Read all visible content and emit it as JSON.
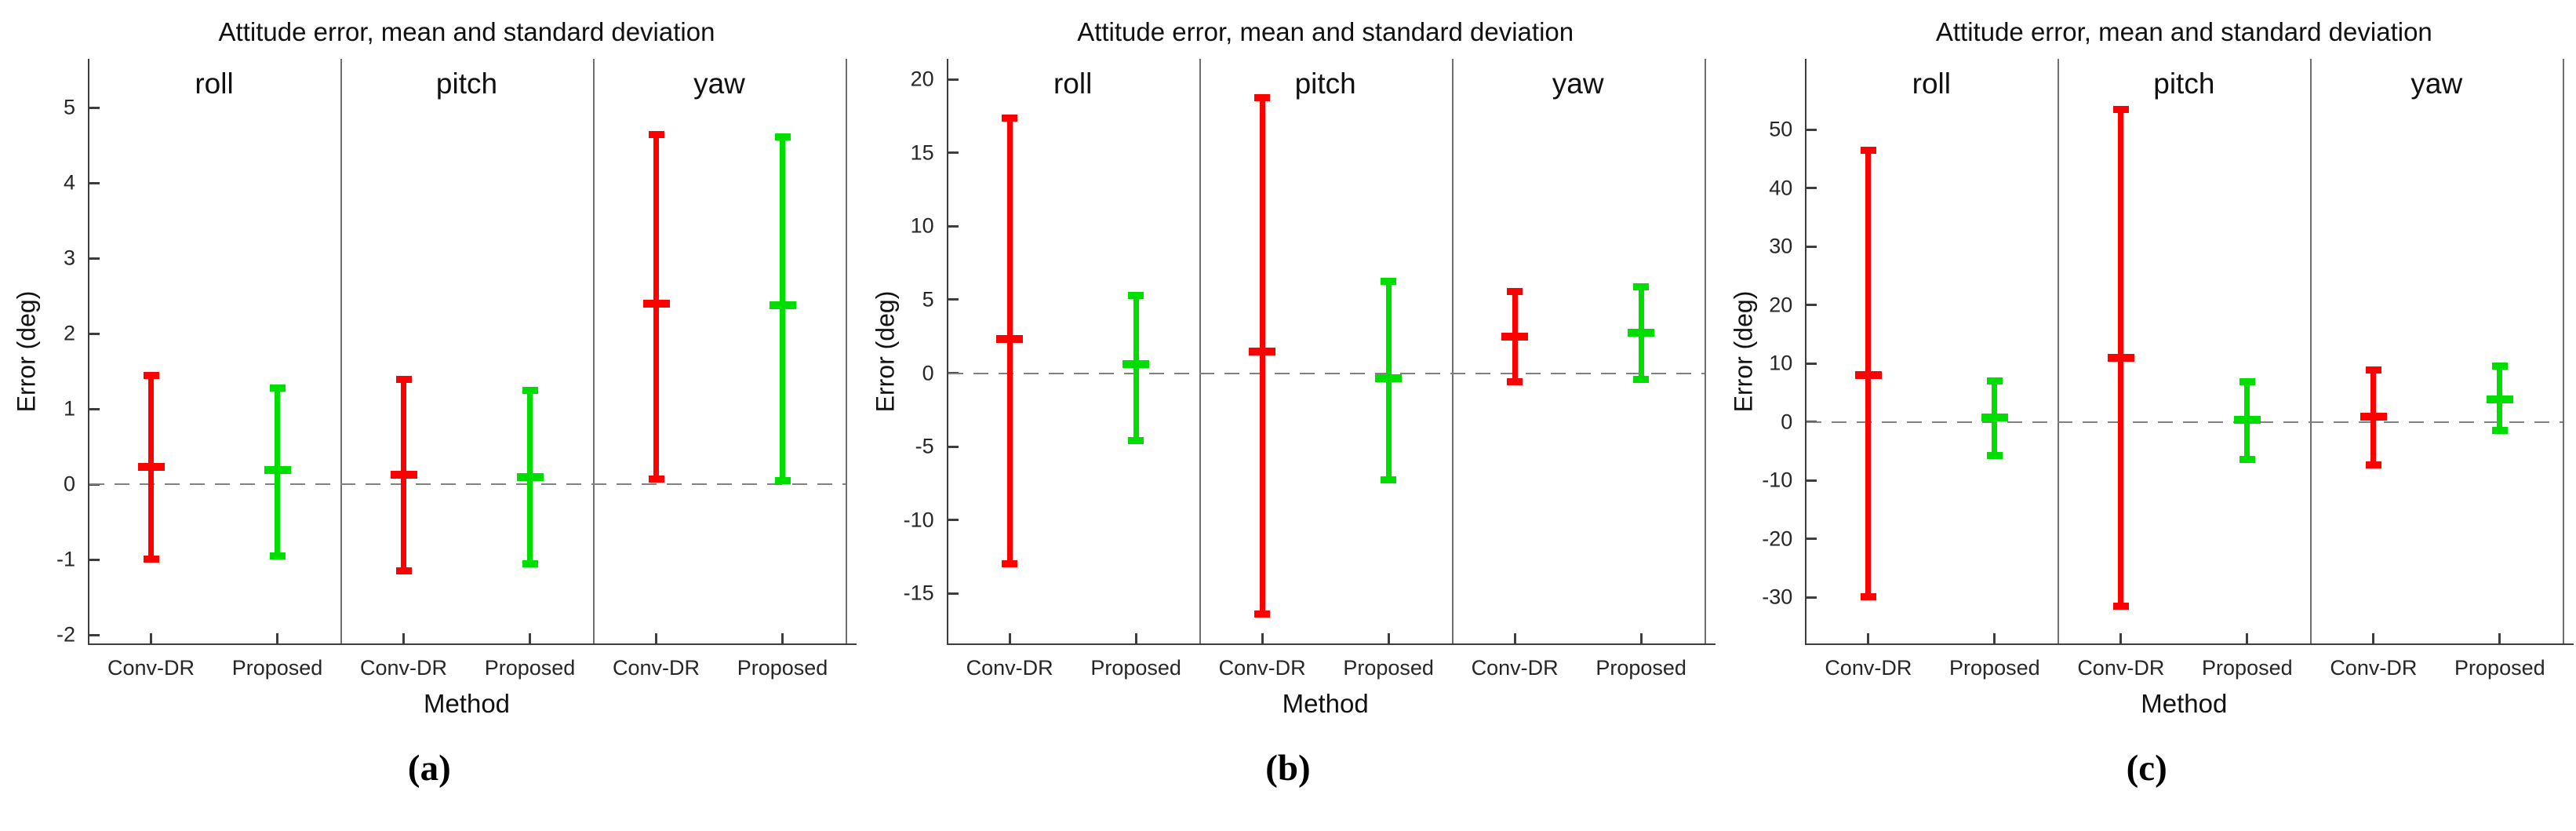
{
  "figure": {
    "background": "#ffffff",
    "axis_color": "#3d3d3d",
    "divider_color": "#6e6e6e",
    "zero_line_color": "#808080",
    "text_color": "#111111",
    "tick_label_color": "#262626"
  },
  "chart_data": [
    {
      "panel": "a",
      "caption": "(a)",
      "type": "errorbar",
      "title": "Attitude error, mean and standard deviation",
      "xlabel": "Method",
      "ylabel": "Error (deg)",
      "sections": [
        "roll",
        "pitch",
        "yaw"
      ],
      "categories": [
        "Conv-DR",
        "Proposed",
        "Conv-DR",
        "Proposed",
        "Conv-DR",
        "Proposed"
      ],
      "yticks": [
        5,
        4,
        3,
        2,
        1,
        0,
        -1,
        -2
      ],
      "ylim": [
        -2.11,
        5.65
      ],
      "zero_line": true,
      "grid": false,
      "legend": null,
      "series": [
        {
          "section": "roll",
          "method": "Conv-DR",
          "color": "#ff0000",
          "mean": 0.23,
          "lo": -1.0,
          "hi": 1.45
        },
        {
          "section": "roll",
          "method": "Proposed",
          "color": "#00de00",
          "mean": 0.19,
          "lo": -0.95,
          "hi": 1.29
        },
        {
          "section": "pitch",
          "method": "Conv-DR",
          "color": "#ff0000",
          "mean": 0.13,
          "lo": -1.15,
          "hi": 1.4
        },
        {
          "section": "pitch",
          "method": "Proposed",
          "color": "#00de00",
          "mean": 0.1,
          "lo": -1.06,
          "hi": 1.25
        },
        {
          "section": "yaw",
          "method": "Conv-DR",
          "color": "#ff0000",
          "mean": 2.4,
          "lo": 0.07,
          "hi": 4.65
        },
        {
          "section": "yaw",
          "method": "Proposed",
          "color": "#00de00",
          "mean": 2.38,
          "lo": 0.05,
          "hi": 4.62
        }
      ]
    },
    {
      "panel": "b",
      "caption": "(b)",
      "type": "errorbar",
      "title": "Attitude error, mean and standard deviation",
      "xlabel": "Method",
      "ylabel": "Error (deg)",
      "sections": [
        "roll",
        "pitch",
        "yaw"
      ],
      "categories": [
        "Conv-DR",
        "Proposed",
        "Conv-DR",
        "Proposed",
        "Conv-DR",
        "Proposed"
      ],
      "yticks": [
        20,
        15,
        10,
        5,
        0,
        -5,
        -10,
        -15
      ],
      "ylim": [
        -18.4,
        21.4
      ],
      "zero_line": true,
      "grid": false,
      "legend": null,
      "series": [
        {
          "section": "roll",
          "method": "Conv-DR",
          "color": "#ff0000",
          "mean": 2.35,
          "lo": -13.0,
          "hi": 17.4
        },
        {
          "section": "roll",
          "method": "Proposed",
          "color": "#00de00",
          "mean": 0.6,
          "lo": -4.6,
          "hi": 5.3
        },
        {
          "section": "pitch",
          "method": "Conv-DR",
          "color": "#ff0000",
          "mean": 1.45,
          "lo": -16.4,
          "hi": 18.8
        },
        {
          "section": "pitch",
          "method": "Proposed",
          "color": "#00de00",
          "mean": -0.35,
          "lo": -7.3,
          "hi": 6.3
        },
        {
          "section": "yaw",
          "method": "Conv-DR",
          "color": "#ff0000",
          "mean": 2.5,
          "lo": -0.6,
          "hi": 5.6
        },
        {
          "section": "yaw",
          "method": "Proposed",
          "color": "#00de00",
          "mean": 2.75,
          "lo": -0.45,
          "hi": 5.9
        }
      ]
    },
    {
      "panel": "c",
      "caption": "(c)",
      "type": "errorbar",
      "title": "Attitude error, mean and standard deviation",
      "xlabel": "Method",
      "ylabel": "Error (deg)",
      "sections": [
        "roll",
        "pitch",
        "yaw"
      ],
      "categories": [
        "Conv-DR",
        "Proposed",
        "Conv-DR",
        "Proposed",
        "Conv-DR",
        "Proposed"
      ],
      "yticks": [
        50,
        40,
        30,
        20,
        10,
        0,
        -10,
        -20,
        -30
      ],
      "ylim": [
        -37.9,
        62.1
      ],
      "zero_line": true,
      "grid": false,
      "legend": null,
      "series": [
        {
          "section": "roll",
          "method": "Conv-DR",
          "color": "#ff0000",
          "mean": 8.0,
          "lo": -30.0,
          "hi": 46.5
        },
        {
          "section": "roll",
          "method": "Proposed",
          "color": "#00de00",
          "mean": 0.7,
          "lo": -5.8,
          "hi": 7.0
        },
        {
          "section": "pitch",
          "method": "Conv-DR",
          "color": "#ff0000",
          "mean": 11.0,
          "lo": -31.6,
          "hi": 53.5
        },
        {
          "section": "pitch",
          "method": "Proposed",
          "color": "#00de00",
          "mean": 0.3,
          "lo": -6.5,
          "hi": 6.9
        },
        {
          "section": "yaw",
          "method": "Conv-DR",
          "color": "#ff0000",
          "mean": 0.9,
          "lo": -7.4,
          "hi": 8.9
        },
        {
          "section": "yaw",
          "method": "Proposed",
          "color": "#00de00",
          "mean": 3.8,
          "lo": -1.5,
          "hi": 9.6
        }
      ]
    }
  ]
}
